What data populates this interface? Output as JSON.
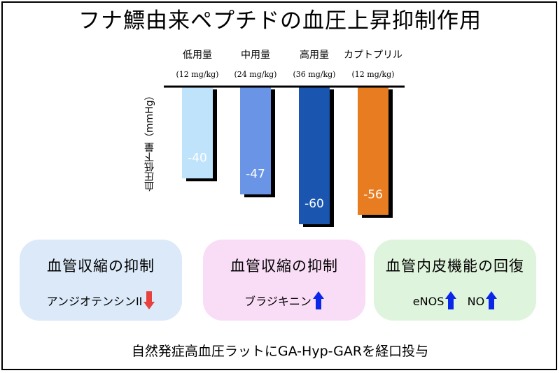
{
  "title": "フナ鰾由来ペプチドの血圧上昇抑制作用",
  "chart_data": {
    "type": "bar",
    "categories": [
      "低用量",
      "中用量",
      "高用量",
      "カプトプリル"
    ],
    "doses": [
      "(12 mg/kg)",
      "(24 mg/kg)",
      "(36 mg/kg)",
      "(12 mg/kg)"
    ],
    "values": [
      -40,
      -47,
      -60,
      -56
    ],
    "value_labels": [
      "-40",
      "-47",
      "-60",
      "-56"
    ],
    "ylabel": "血圧低下量（mmHg）",
    "ylim": [
      -60,
      0
    ],
    "colors": [
      "#bfe3fb",
      "#6a95e6",
      "#1a56b0",
      "#e87c20"
    ],
    "grid": false
  },
  "cards": [
    {
      "title": "血管収縮の抑制",
      "effect": "アンジオテンシンII",
      "arrow": "down",
      "bg": "#dbe9f8"
    },
    {
      "title": "血管収縮の抑制",
      "effect": "ブラジキニン",
      "arrow": "up",
      "bg": "#f9dcf5"
    },
    {
      "title": "血管内皮機能の回復",
      "effect1": "eNOS",
      "effect2": "NO",
      "arrow": "up",
      "bg": "#dff4dc"
    }
  ],
  "colors": {
    "arrow_up": "#0a26e8",
    "arrow_down": "#e8403d"
  },
  "footer": "自然発症高血圧ラットにGA-Hyp-GARを経口投与"
}
